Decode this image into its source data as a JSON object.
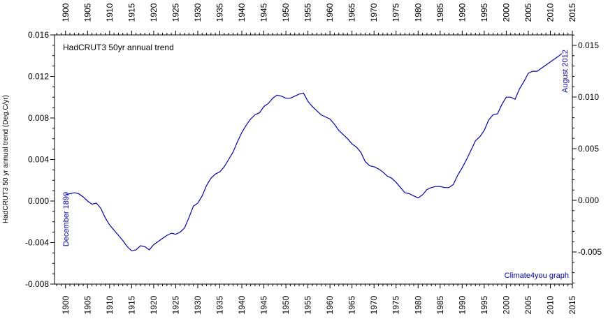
{
  "chart_data": {
    "type": "line",
    "title": "HadCRUT3 50yr annual trend",
    "ylabel": "HadCRUT3 50 yr annual trend (Deg.C/yr)",
    "xlabel": "",
    "credit": "Climate4you graph",
    "start_label": "December 1899",
    "end_label": "August 2012",
    "xlim": [
      1897.5,
      2015
    ],
    "ylim": [
      -0.008,
      0.016
    ],
    "x_ticks": [
      "1900",
      "1905",
      "1910",
      "1915",
      "1920",
      "1925",
      "1930",
      "1935",
      "1940",
      "1945",
      "1950",
      "1955",
      "1960",
      "1965",
      "1970",
      "1975",
      "1980",
      "1985",
      "1990",
      "1995",
      "2000",
      "2005",
      "2010",
      "2015"
    ],
    "y_ticks_left": [
      "-0.008",
      "-0.004",
      "0.000",
      "0.004",
      "0.008",
      "0.012",
      "0.016"
    ],
    "y_ticks_right": [
      "-0.005",
      "0.000",
      "0.005",
      "0.010",
      "0.015"
    ],
    "line_color": "#0000cc",
    "series": [
      {
        "x": [
          1900.0,
          1901.0,
          1902.0,
          1903.0,
          1904.0,
          1905.0,
          1906.0,
          1907.0,
          1908.0,
          1909.0,
          1910.0,
          1911.0,
          1912.0,
          1913.0,
          1914.0,
          1915.0,
          1916.0,
          1917.0,
          1918.0,
          1919.0,
          1920.0,
          1921.0,
          1922.0,
          1923.0,
          1924.0,
          1925.0,
          1926.0,
          1927.0,
          1928.0,
          1929.0,
          1930.0,
          1931.0,
          1932.0,
          1933.0,
          1934.0,
          1935.0,
          1936.0,
          1937.0,
          1938.0,
          1939.0,
          1940.0,
          1941.0,
          1942.0,
          1943.0,
          1944.0,
          1945.0,
          1946.0,
          1947.0,
          1948.0,
          1949.0,
          1950.0,
          1951.0,
          1952.0,
          1953.0,
          1954.0,
          1955.0,
          1956.0,
          1957.0,
          1958.0,
          1959.0,
          1960.0,
          1961.0,
          1962.0,
          1963.0,
          1964.0,
          1965.0,
          1966.0,
          1967.0,
          1968.0,
          1969.0,
          1970.0,
          1971.0,
          1972.0,
          1973.0,
          1974.0,
          1975.0,
          1976.0,
          1977.0,
          1978.0,
          1979.0,
          1980.0,
          1981.0,
          1982.0,
          1983.0,
          1984.0,
          1985.0,
          1986.0,
          1987.0,
          1988.0,
          1989.0,
          1990.0,
          1991.0,
          1992.0,
          1993.0,
          1994.0,
          1995.0,
          1996.0,
          1997.0,
          1998.0,
          1999.0,
          2000.0,
          2001.0,
          2002.0,
          2003.0,
          2004.0,
          2005.0,
          2006.0,
          2007.0,
          2008.0,
          2009.0,
          2010.0,
          2011.0,
          2012.0,
          2012.6
        ],
        "y": [
          0.0006,
          0.0007,
          0.0008,
          0.0007,
          0.0004,
          0.0,
          -0.0003,
          -0.0002,
          -0.0007,
          -0.0016,
          -0.0023,
          -0.0028,
          -0.0033,
          -0.0038,
          -0.0044,
          -0.0048,
          -0.0047,
          -0.0043,
          -0.0044,
          -0.0047,
          -0.0042,
          -0.0039,
          -0.0036,
          -0.0033,
          -0.0031,
          -0.0032,
          -0.003,
          -0.0026,
          -0.0016,
          -0.0005,
          -0.0002,
          0.0005,
          0.0015,
          0.0022,
          0.0026,
          0.0028,
          0.0033,
          0.004,
          0.0047,
          0.0057,
          0.0066,
          0.0073,
          0.0079,
          0.0083,
          0.0085,
          0.0091,
          0.0094,
          0.0099,
          0.0102,
          0.0101,
          0.0099,
          0.0099,
          0.0101,
          0.0103,
          0.0104,
          0.0096,
          0.0091,
          0.0087,
          0.0083,
          0.0081,
          0.0079,
          0.0074,
          0.0068,
          0.0064,
          0.006,
          0.0055,
          0.0052,
          0.0047,
          0.0038,
          0.0034,
          0.0033,
          0.0031,
          0.0028,
          0.0024,
          0.0022,
          0.0018,
          0.0013,
          0.0008,
          0.0007,
          0.0005,
          0.0003,
          0.0006,
          0.0011,
          0.0013,
          0.0014,
          0.0014,
          0.0013,
          0.0013,
          0.0016,
          0.0025,
          0.0032,
          0.004,
          0.0049,
          0.0058,
          0.0062,
          0.0068,
          0.0078,
          0.0083,
          0.0084,
          0.0093,
          0.01,
          0.01,
          0.0098,
          0.0108,
          0.0115,
          0.0123,
          0.0125,
          0.0125,
          0.0128,
          0.0131,
          0.0134,
          0.0137,
          0.014,
          0.0142
        ]
      }
    ]
  }
}
